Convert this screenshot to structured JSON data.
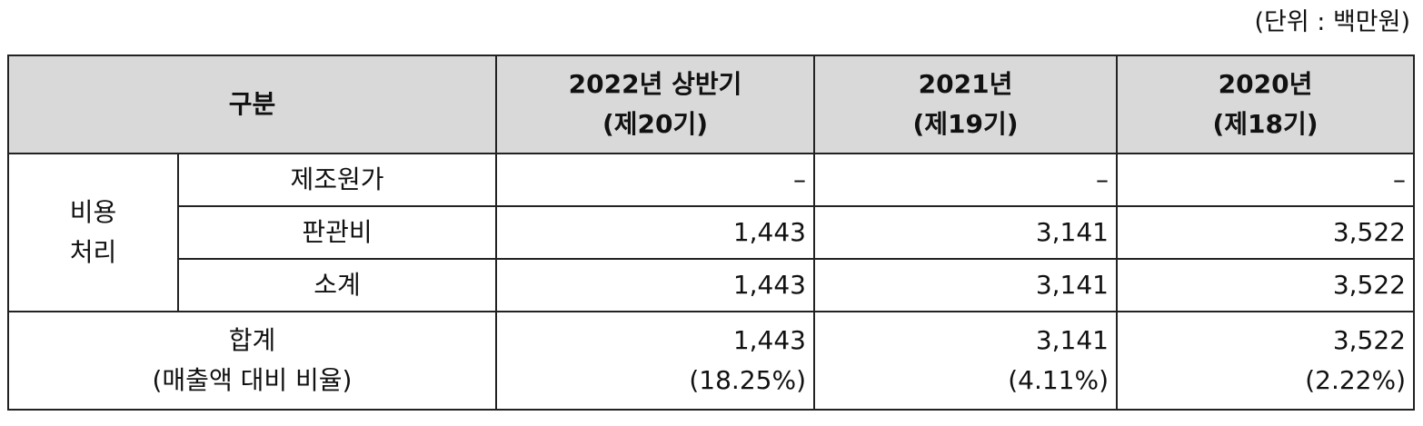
{
  "unit": "(단위 : 백만원)",
  "table": {
    "header": {
      "category": "구분",
      "columns": [
        [
          "2022년 상반기",
          "(제20기)"
        ],
        [
          "2021년",
          "(제19기)"
        ],
        [
          "2020년",
          "(제18기)"
        ]
      ]
    },
    "group": [
      "비용",
      "처리"
    ],
    "rows": [
      {
        "label": "제조원가",
        "values": [
          "–",
          "–",
          "–"
        ]
      },
      {
        "label": "판관비",
        "values": [
          "1,443",
          "3,141",
          "3,522"
        ]
      },
      {
        "label": "소계",
        "values": [
          "1,443",
          "3,141",
          "3,522"
        ]
      }
    ],
    "total": {
      "label": [
        "합계",
        "(매출액 대비 비율)"
      ],
      "values": [
        [
          "1,443",
          "(18.25%)"
        ],
        [
          "3,141",
          "(4.11%)"
        ],
        [
          "3,522",
          "(2.22%)"
        ]
      ]
    }
  }
}
